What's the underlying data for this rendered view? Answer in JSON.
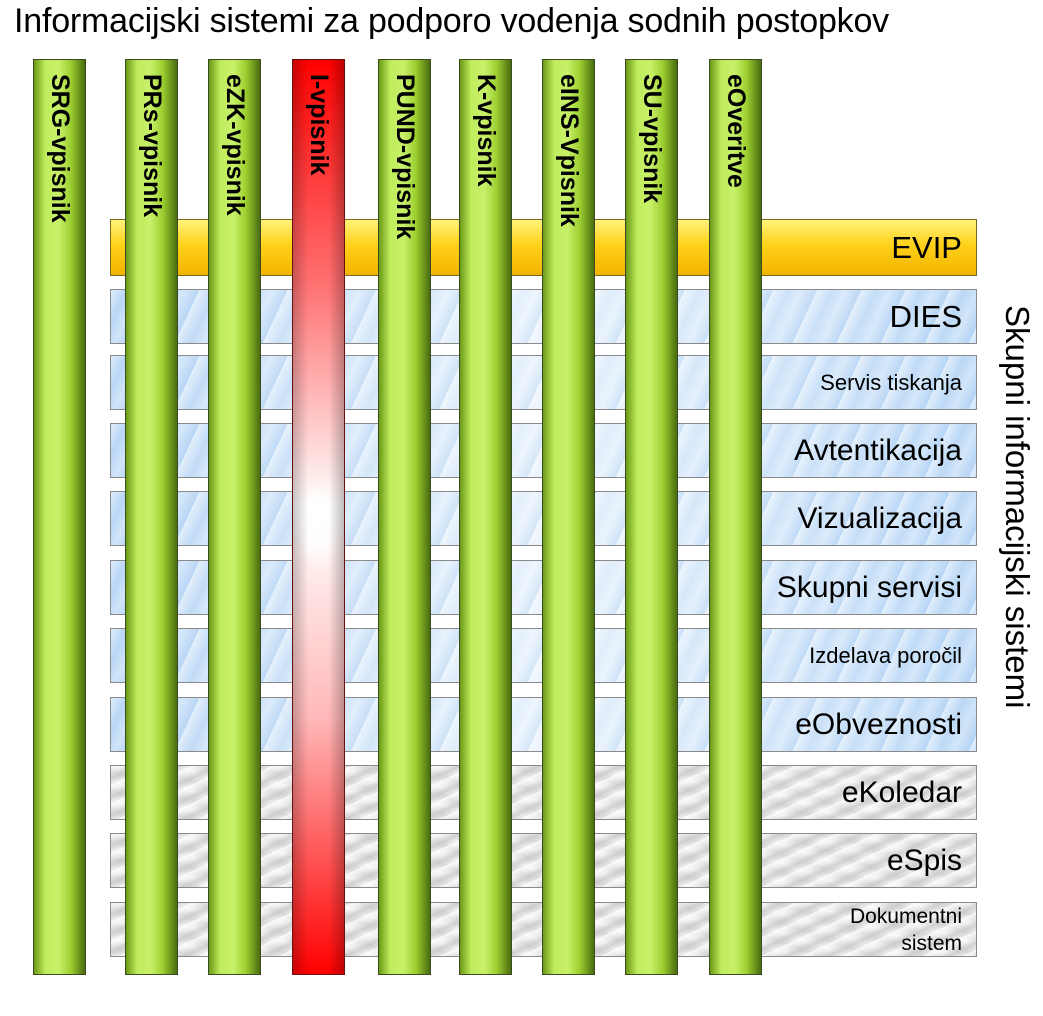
{
  "title": "Informacijski sistemi za podporo vodenja sodnih postopkov",
  "side_label": "Skupni informacijski sistemi",
  "columns": [
    "SRG-vpisnik",
    "PRs-vpisnik",
    "eZK-vpisnik",
    "I-vpisnik",
    "PUND-vpisnik",
    "K-vpisnik",
    "eINS-Vpisnik",
    "SU-vpisnik",
    "eOveritve"
  ],
  "rows": [
    "EVIP",
    "DIES",
    "Servis tiskanja",
    "Avtentikacija",
    "Vizualizacija",
    "Skupni servisi",
    "Izdelava poročil",
    "eObveznosti",
    "eKoledar",
    "eSpis",
    "Dokumentni\nsistem"
  ],
  "colors": {
    "column_green": "#b4e34a",
    "column_red_highlight": "#ff0000",
    "row_evip": "#ffd21a",
    "row_blue": "#cfe3f8",
    "row_grey": "#e8e8e8"
  }
}
